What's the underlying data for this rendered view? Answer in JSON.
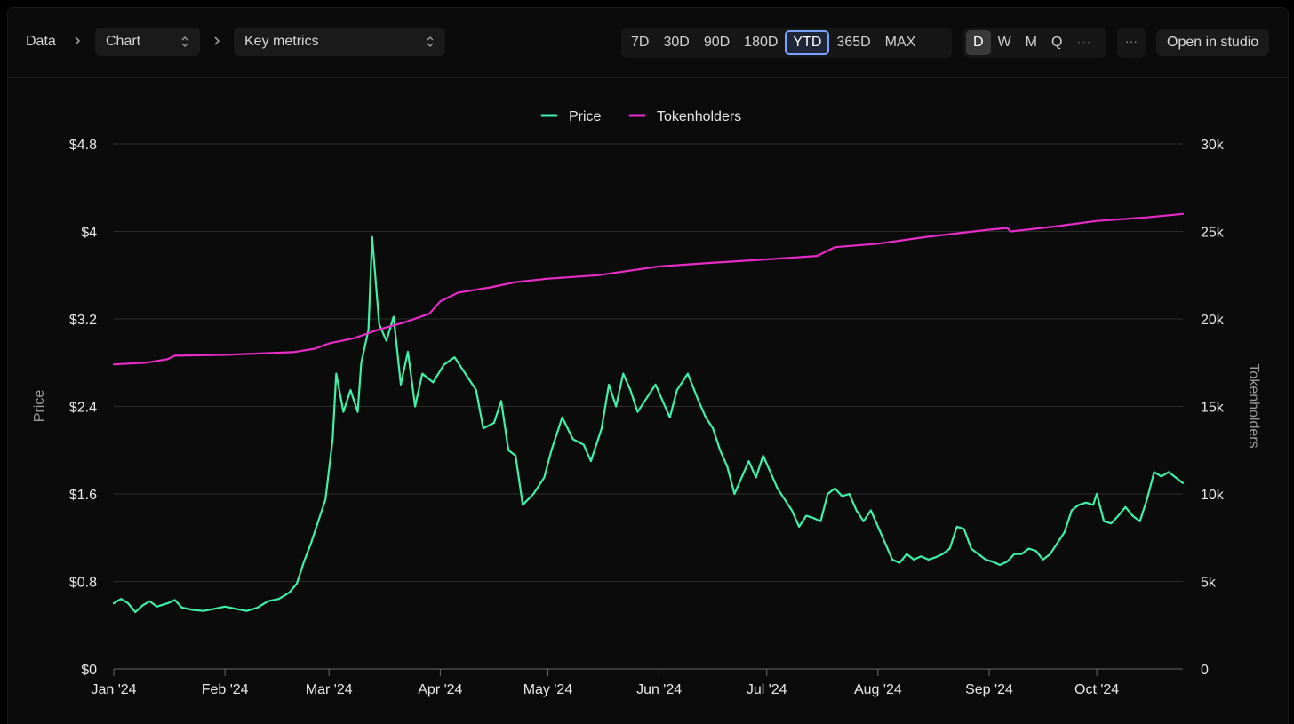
{
  "breadcrumb": {
    "root": "Data",
    "chart_select": "Chart",
    "metrics_select": "Key metrics"
  },
  "ranges": [
    {
      "label": "7D",
      "active": false
    },
    {
      "label": "30D",
      "active": false
    },
    {
      "label": "90D",
      "active": false
    },
    {
      "label": "180D",
      "active": false
    },
    {
      "label": "YTD",
      "active": true
    },
    {
      "label": "365D",
      "active": false
    },
    {
      "label": "MAX",
      "active": false
    }
  ],
  "granularity": [
    {
      "label": "D",
      "active": true
    },
    {
      "label": "W",
      "active": false
    },
    {
      "label": "M",
      "active": false
    },
    {
      "label": "Q",
      "active": false
    },
    {
      "label": "···",
      "active": false
    }
  ],
  "more_label": "···",
  "studio_label": "Open in studio",
  "icons": {
    "breadcrumb_separator": "chevron-right-icon",
    "select_indicator": "chevron-up-down-icon"
  },
  "chart_data": {
    "type": "line",
    "x_range": [
      "2024-01-01",
      "2024-10-25"
    ],
    "x_ticks": [
      {
        "date": "2024-01-01",
        "label": "Jan '24"
      },
      {
        "date": "2024-02-01",
        "label": "Feb '24"
      },
      {
        "date": "2024-03-01",
        "label": "Mar '24"
      },
      {
        "date": "2024-04-01",
        "label": "Apr '24"
      },
      {
        "date": "2024-05-01",
        "label": "May '24"
      },
      {
        "date": "2024-06-01",
        "label": "Jun '24"
      },
      {
        "date": "2024-07-01",
        "label": "Jul '24"
      },
      {
        "date": "2024-08-01",
        "label": "Aug '24"
      },
      {
        "date": "2024-09-01",
        "label": "Sep '24"
      },
      {
        "date": "2024-10-01",
        "label": "Oct '24"
      }
    ],
    "y_left": {
      "label": "Price",
      "range": [
        0,
        4.8
      ],
      "ticks": [
        0,
        0.8,
        1.6,
        2.4,
        3.2,
        4,
        4.8
      ],
      "tick_labels": [
        "$0",
        "$0.8",
        "$1.6",
        "$2.4",
        "$3.2",
        "$4",
        "$4.8"
      ]
    },
    "y_right": {
      "label": "Tokenholders",
      "range": [
        0,
        30000
      ],
      "ticks": [
        0,
        5000,
        10000,
        15000,
        20000,
        25000,
        30000
      ],
      "tick_labels": [
        "0",
        "5k",
        "10k",
        "15k",
        "20k",
        "25k",
        "30k"
      ]
    },
    "grid": true,
    "legend_position": "top-center",
    "series": [
      {
        "name": "Price",
        "axis": "left",
        "color": "#3ef0a8",
        "points": [
          [
            "2024-01-01",
            0.6
          ],
          [
            "2024-01-03",
            0.64
          ],
          [
            "2024-01-05",
            0.6
          ],
          [
            "2024-01-07",
            0.52
          ],
          [
            "2024-01-09",
            0.58
          ],
          [
            "2024-01-11",
            0.62
          ],
          [
            "2024-01-13",
            0.57
          ],
          [
            "2024-01-16",
            0.6
          ],
          [
            "2024-01-18",
            0.63
          ],
          [
            "2024-01-20",
            0.56
          ],
          [
            "2024-01-23",
            0.54
          ],
          [
            "2024-01-26",
            0.53
          ],
          [
            "2024-01-29",
            0.55
          ],
          [
            "2024-02-01",
            0.57
          ],
          [
            "2024-02-04",
            0.55
          ],
          [
            "2024-02-07",
            0.53
          ],
          [
            "2024-02-10",
            0.56
          ],
          [
            "2024-02-13",
            0.62
          ],
          [
            "2024-02-16",
            0.64
          ],
          [
            "2024-02-19",
            0.7
          ],
          [
            "2024-02-21",
            0.78
          ],
          [
            "2024-02-23",
            0.98
          ],
          [
            "2024-02-25",
            1.15
          ],
          [
            "2024-02-27",
            1.35
          ],
          [
            "2024-02-29",
            1.55
          ],
          [
            "2024-03-02",
            2.1
          ],
          [
            "2024-03-03",
            2.7
          ],
          [
            "2024-03-05",
            2.35
          ],
          [
            "2024-03-07",
            2.55
          ],
          [
            "2024-03-09",
            2.35
          ],
          [
            "2024-03-10",
            2.8
          ],
          [
            "2024-03-12",
            3.1
          ],
          [
            "2024-03-13",
            3.95
          ],
          [
            "2024-03-15",
            3.15
          ],
          [
            "2024-03-17",
            3.0
          ],
          [
            "2024-03-19",
            3.22
          ],
          [
            "2024-03-21",
            2.6
          ],
          [
            "2024-03-23",
            2.9
          ],
          [
            "2024-03-25",
            2.4
          ],
          [
            "2024-03-27",
            2.7
          ],
          [
            "2024-03-30",
            2.62
          ],
          [
            "2024-04-02",
            2.78
          ],
          [
            "2024-04-05",
            2.85
          ],
          [
            "2024-04-08",
            2.7
          ],
          [
            "2024-04-11",
            2.55
          ],
          [
            "2024-04-13",
            2.2
          ],
          [
            "2024-04-16",
            2.25
          ],
          [
            "2024-04-18",
            2.45
          ],
          [
            "2024-04-20",
            2.0
          ],
          [
            "2024-04-22",
            1.95
          ],
          [
            "2024-04-24",
            1.5
          ],
          [
            "2024-04-27",
            1.6
          ],
          [
            "2024-04-30",
            1.75
          ],
          [
            "2024-05-02",
            2.0
          ],
          [
            "2024-05-05",
            2.3
          ],
          [
            "2024-05-08",
            2.1
          ],
          [
            "2024-05-11",
            2.05
          ],
          [
            "2024-05-13",
            1.9
          ],
          [
            "2024-05-16",
            2.2
          ],
          [
            "2024-05-18",
            2.6
          ],
          [
            "2024-05-20",
            2.4
          ],
          [
            "2024-05-22",
            2.7
          ],
          [
            "2024-05-24",
            2.55
          ],
          [
            "2024-05-26",
            2.35
          ],
          [
            "2024-05-28",
            2.45
          ],
          [
            "2024-05-31",
            2.6
          ],
          [
            "2024-06-02",
            2.45
          ],
          [
            "2024-06-04",
            2.3
          ],
          [
            "2024-06-06",
            2.55
          ],
          [
            "2024-06-09",
            2.7
          ],
          [
            "2024-06-12",
            2.45
          ],
          [
            "2024-06-14",
            2.3
          ],
          [
            "2024-06-16",
            2.2
          ],
          [
            "2024-06-18",
            2.0
          ],
          [
            "2024-06-20",
            1.85
          ],
          [
            "2024-06-22",
            1.6
          ],
          [
            "2024-06-24",
            1.75
          ],
          [
            "2024-06-26",
            1.9
          ],
          [
            "2024-06-28",
            1.75
          ],
          [
            "2024-06-30",
            1.95
          ],
          [
            "2024-07-02",
            1.8
          ],
          [
            "2024-07-04",
            1.65
          ],
          [
            "2024-07-06",
            1.55
          ],
          [
            "2024-07-08",
            1.45
          ],
          [
            "2024-07-10",
            1.3
          ],
          [
            "2024-07-12",
            1.4
          ],
          [
            "2024-07-14",
            1.38
          ],
          [
            "2024-07-16",
            1.35
          ],
          [
            "2024-07-18",
            1.6
          ],
          [
            "2024-07-20",
            1.65
          ],
          [
            "2024-07-22",
            1.58
          ],
          [
            "2024-07-24",
            1.6
          ],
          [
            "2024-07-26",
            1.45
          ],
          [
            "2024-07-28",
            1.35
          ],
          [
            "2024-07-30",
            1.45
          ],
          [
            "2024-08-01",
            1.3
          ],
          [
            "2024-08-03",
            1.15
          ],
          [
            "2024-08-05",
            1.0
          ],
          [
            "2024-08-07",
            0.97
          ],
          [
            "2024-08-09",
            1.05
          ],
          [
            "2024-08-11",
            1.0
          ],
          [
            "2024-08-13",
            1.03
          ],
          [
            "2024-08-15",
            1.0
          ],
          [
            "2024-08-17",
            1.02
          ],
          [
            "2024-08-19",
            1.05
          ],
          [
            "2024-08-21",
            1.1
          ],
          [
            "2024-08-23",
            1.3
          ],
          [
            "2024-08-25",
            1.28
          ],
          [
            "2024-08-27",
            1.1
          ],
          [
            "2024-08-29",
            1.05
          ],
          [
            "2024-08-31",
            1.0
          ],
          [
            "2024-09-02",
            0.98
          ],
          [
            "2024-09-04",
            0.95
          ],
          [
            "2024-09-06",
            0.98
          ],
          [
            "2024-09-08",
            1.05
          ],
          [
            "2024-09-10",
            1.05
          ],
          [
            "2024-09-12",
            1.1
          ],
          [
            "2024-09-14",
            1.08
          ],
          [
            "2024-09-16",
            1.0
          ],
          [
            "2024-09-18",
            1.05
          ],
          [
            "2024-09-20",
            1.15
          ],
          [
            "2024-09-22",
            1.25
          ],
          [
            "2024-09-24",
            1.45
          ],
          [
            "2024-09-26",
            1.5
          ],
          [
            "2024-09-28",
            1.52
          ],
          [
            "2024-09-30",
            1.5
          ],
          [
            "2024-10-01",
            1.6
          ],
          [
            "2024-10-03",
            1.35
          ],
          [
            "2024-10-05",
            1.33
          ],
          [
            "2024-10-07",
            1.4
          ],
          [
            "2024-10-09",
            1.48
          ],
          [
            "2024-10-11",
            1.4
          ],
          [
            "2024-10-13",
            1.35
          ],
          [
            "2024-10-15",
            1.55
          ],
          [
            "2024-10-17",
            1.8
          ],
          [
            "2024-10-19",
            1.76
          ],
          [
            "2024-10-21",
            1.8
          ],
          [
            "2024-10-23",
            1.75
          ],
          [
            "2024-10-25",
            1.7
          ]
        ]
      },
      {
        "name": "Tokenholders",
        "axis": "right",
        "color": "#e82cc8",
        "points": [
          [
            "2024-01-01",
            17400
          ],
          [
            "2024-01-10",
            17500
          ],
          [
            "2024-01-16",
            17700
          ],
          [
            "2024-01-18",
            17900
          ],
          [
            "2024-02-01",
            17950
          ],
          [
            "2024-02-20",
            18100
          ],
          [
            "2024-02-26",
            18300
          ],
          [
            "2024-03-01",
            18600
          ],
          [
            "2024-03-08",
            18900
          ],
          [
            "2024-03-15",
            19400
          ],
          [
            "2024-03-22",
            19800
          ],
          [
            "2024-03-29",
            20300
          ],
          [
            "2024-04-01",
            21000
          ],
          [
            "2024-04-06",
            21500
          ],
          [
            "2024-04-15",
            21800
          ],
          [
            "2024-04-22",
            22100
          ],
          [
            "2024-05-01",
            22300
          ],
          [
            "2024-05-15",
            22500
          ],
          [
            "2024-06-01",
            23000
          ],
          [
            "2024-06-15",
            23200
          ],
          [
            "2024-07-01",
            23400
          ],
          [
            "2024-07-15",
            23600
          ],
          [
            "2024-07-20",
            24100
          ],
          [
            "2024-08-01",
            24300
          ],
          [
            "2024-08-15",
            24700
          ],
          [
            "2024-09-01",
            25100
          ],
          [
            "2024-09-06",
            25200
          ],
          [
            "2024-09-07",
            25000
          ],
          [
            "2024-09-20",
            25300
          ],
          [
            "2024-10-01",
            25600
          ],
          [
            "2024-10-15",
            25800
          ],
          [
            "2024-10-25",
            26000
          ]
        ]
      }
    ]
  }
}
